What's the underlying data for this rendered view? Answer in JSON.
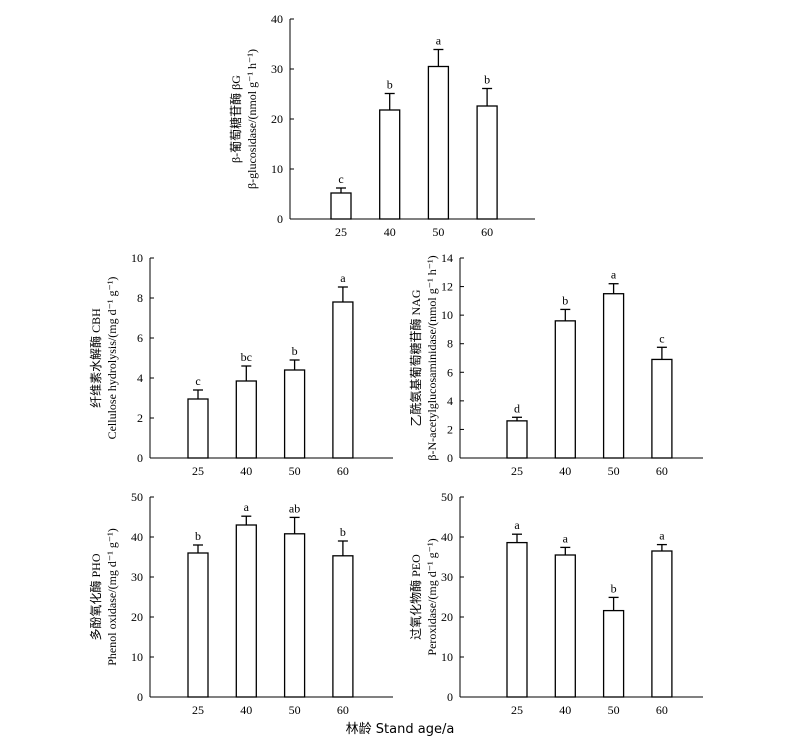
{
  "x_axis_label": "林龄 Stand age/a",
  "colors": {
    "bar_fill": "#ffffff",
    "bar_stroke": "#000000",
    "axis": "#000000"
  },
  "chart_data": [
    {
      "type": "bar",
      "ylabel_cn": "β-葡萄糖苷酶 βG",
      "ylabel_en": "β-glucosidase/(nmol g⁻¹ h⁻¹)",
      "categories": [
        "25",
        "40",
        "50",
        "60"
      ],
      "values": [
        5.2,
        21.8,
        30.5,
        22.6
      ],
      "errors": [
        1.0,
        3.3,
        3.4,
        3.5
      ],
      "letters": [
        "c",
        "b",
        "a",
        "b"
      ],
      "ylim": [
        0,
        40
      ],
      "yticks": [
        0,
        10,
        20,
        30,
        40
      ]
    },
    {
      "type": "bar",
      "ylabel_cn": "纤维素水解酶 CBH",
      "ylabel_en": "Cellulose hydrolysis/(mg d⁻¹ g⁻¹)",
      "categories": [
        "25",
        "40",
        "50",
        "60"
      ],
      "values": [
        2.95,
        3.85,
        4.4,
        7.8
      ],
      "errors": [
        0.45,
        0.75,
        0.5,
        0.75
      ],
      "letters": [
        "c",
        "bc",
        "b",
        "a"
      ],
      "ylim": [
        0,
        10
      ],
      "yticks": [
        0,
        2,
        4,
        6,
        8,
        10
      ]
    },
    {
      "type": "bar",
      "ylabel_cn": "乙酰氨基葡萄糖苷酶 NAG",
      "ylabel_en": "β-N-acetylglucosaminidase/(nmol g⁻¹ h⁻¹)",
      "categories": [
        "25",
        "40",
        "50",
        "60"
      ],
      "values": [
        2.6,
        9.6,
        11.5,
        6.9
      ],
      "errors": [
        0.25,
        0.8,
        0.7,
        0.85
      ],
      "letters": [
        "d",
        "b",
        "a",
        "c"
      ],
      "ylim": [
        0,
        14
      ],
      "yticks": [
        0,
        2,
        4,
        6,
        8,
        10,
        12,
        14
      ]
    },
    {
      "type": "bar",
      "ylabel_cn": "多酚氧化酶 PHO",
      "ylabel_en": "Phenol oxidase/(mg d⁻¹ g⁻¹)",
      "categories": [
        "25",
        "40",
        "50",
        "60"
      ],
      "values": [
        36.0,
        43.0,
        40.8,
        35.3
      ],
      "errors": [
        2.0,
        2.2,
        4.1,
        3.7
      ],
      "letters": [
        "b",
        "a",
        "ab",
        "b"
      ],
      "ylim": [
        0,
        50
      ],
      "yticks": [
        0,
        10,
        20,
        30,
        40,
        50
      ]
    },
    {
      "type": "bar",
      "ylabel_cn": "过氧化物酶 PEO",
      "ylabel_en": "Peroxidase/(mg d⁻¹ g⁻¹)",
      "categories": [
        "25",
        "40",
        "50",
        "60"
      ],
      "values": [
        38.6,
        35.5,
        21.6,
        36.5
      ],
      "errors": [
        2.1,
        1.9,
        3.3,
        1.6
      ],
      "letters": [
        "a",
        "a",
        "b",
        "a"
      ],
      "ylim": [
        0,
        50
      ],
      "yticks": [
        0,
        10,
        20,
        30,
        40,
        50
      ]
    }
  ]
}
